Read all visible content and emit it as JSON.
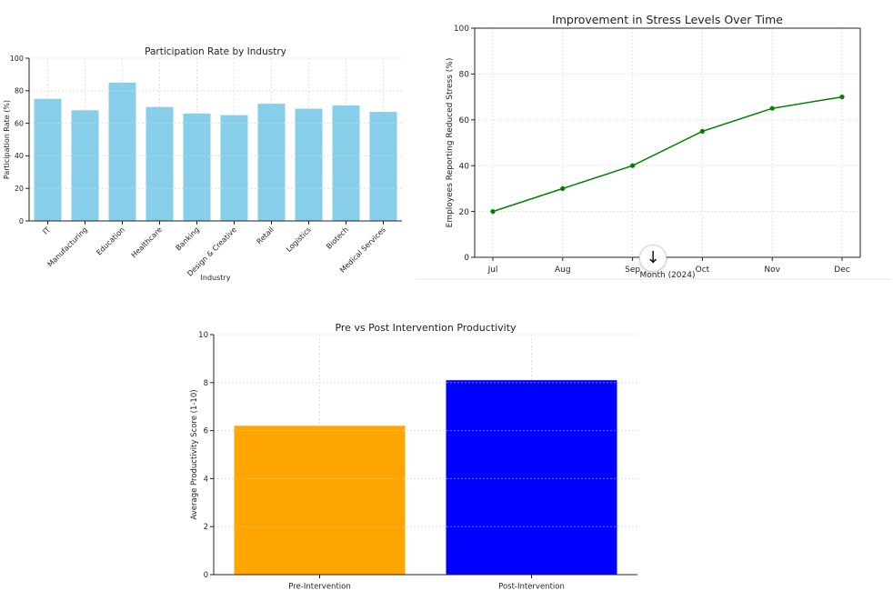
{
  "ui": {
    "scroll_button_glyph": "↓",
    "scroll_button_icon": "arrow-down-icon"
  },
  "chart_data": [
    {
      "type": "bar",
      "title": "Participation Rate by Industry",
      "xlabel": "Industry",
      "ylabel": "Participation Rate (%)",
      "ylim": [
        0,
        100
      ],
      "yticks": [
        0,
        20,
        40,
        60,
        80,
        100
      ],
      "categories": [
        "IT",
        "Manufacturing",
        "Education",
        "Healthcare",
        "Banking",
        "Design & Creative",
        "Retail",
        "Logistics",
        "Biotech",
        "Medical Services"
      ],
      "values": [
        75,
        68,
        85,
        70,
        66,
        65,
        72,
        69,
        71,
        67
      ],
      "color": "#87ceeb",
      "grid": true
    },
    {
      "type": "line",
      "title": "Improvement in Stress Levels Over Time",
      "xlabel": "Month (2024)",
      "ylabel": "Employees Reporting Reduced Stress (%)",
      "ylim": [
        0,
        100
      ],
      "yticks": [
        0,
        20,
        40,
        60,
        80,
        100
      ],
      "categories": [
        "Jul",
        "Aug",
        "Sep",
        "Oct",
        "Nov",
        "Dec"
      ],
      "values": [
        20,
        30,
        40,
        55,
        65,
        70
      ],
      "color": "#008000",
      "grid": true
    },
    {
      "type": "bar",
      "title": "Pre vs Post Intervention Productivity",
      "xlabel": "",
      "ylabel": "Average Productivity Score (1-10)",
      "ylim": [
        0,
        10
      ],
      "yticks": [
        0,
        2,
        4,
        6,
        8,
        10
      ],
      "categories": [
        "Pre-Intervention",
        "Post-Intervention"
      ],
      "values": [
        6.2,
        8.1
      ],
      "colors": [
        "#ffa500",
        "#0000ff"
      ],
      "grid": true
    }
  ]
}
